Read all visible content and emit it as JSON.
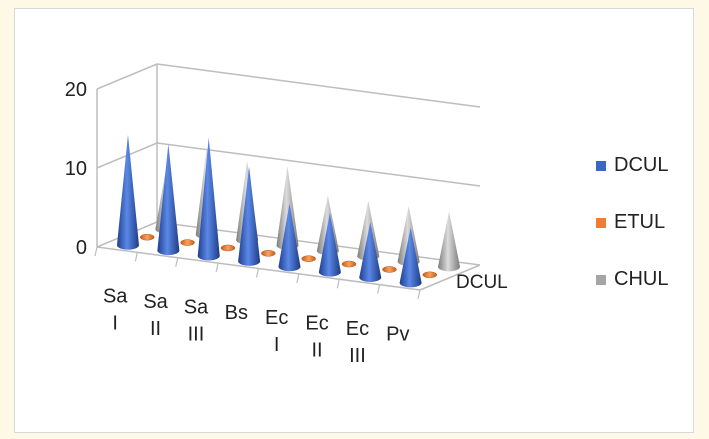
{
  "chart_data": {
    "type": "bar",
    "style": "3d-cone",
    "categories": [
      "Sa I",
      "Sa II",
      "Sa III",
      "Bs",
      "Ec I",
      "Ec II",
      "Ec III",
      "Pv"
    ],
    "category_lines": [
      [
        "Sa",
        "I"
      ],
      [
        "Sa",
        "II"
      ],
      [
        "Sa",
        "III"
      ],
      [
        "Bs",
        ""
      ],
      [
        "Ec",
        "I"
      ],
      [
        "Ec",
        "II"
      ],
      [
        "Ec",
        "III"
      ],
      [
        "Pv",
        ""
      ]
    ],
    "series": [
      {
        "name": "DCUL",
        "color": "#3a66c4",
        "values": [
          14,
          13.5,
          15,
          12,
          8,
          7.5,
          7,
          7
        ]
      },
      {
        "name": "ETUL",
        "color": "#ed7d31",
        "values": [
          0.2,
          0.2,
          0.2,
          0.2,
          0.2,
          0.2,
          0.2,
          0.2
        ]
      },
      {
        "name": "CHUL",
        "color": "#a5a5a5",
        "values": [
          8,
          11,
          10,
          10,
          7,
          7,
          7,
          7
        ]
      }
    ],
    "y_ticks": [
      0,
      10,
      20
    ],
    "ylim": [
      0,
      20
    ],
    "depth_axis_label": "DCUL",
    "legend_position": "right"
  }
}
